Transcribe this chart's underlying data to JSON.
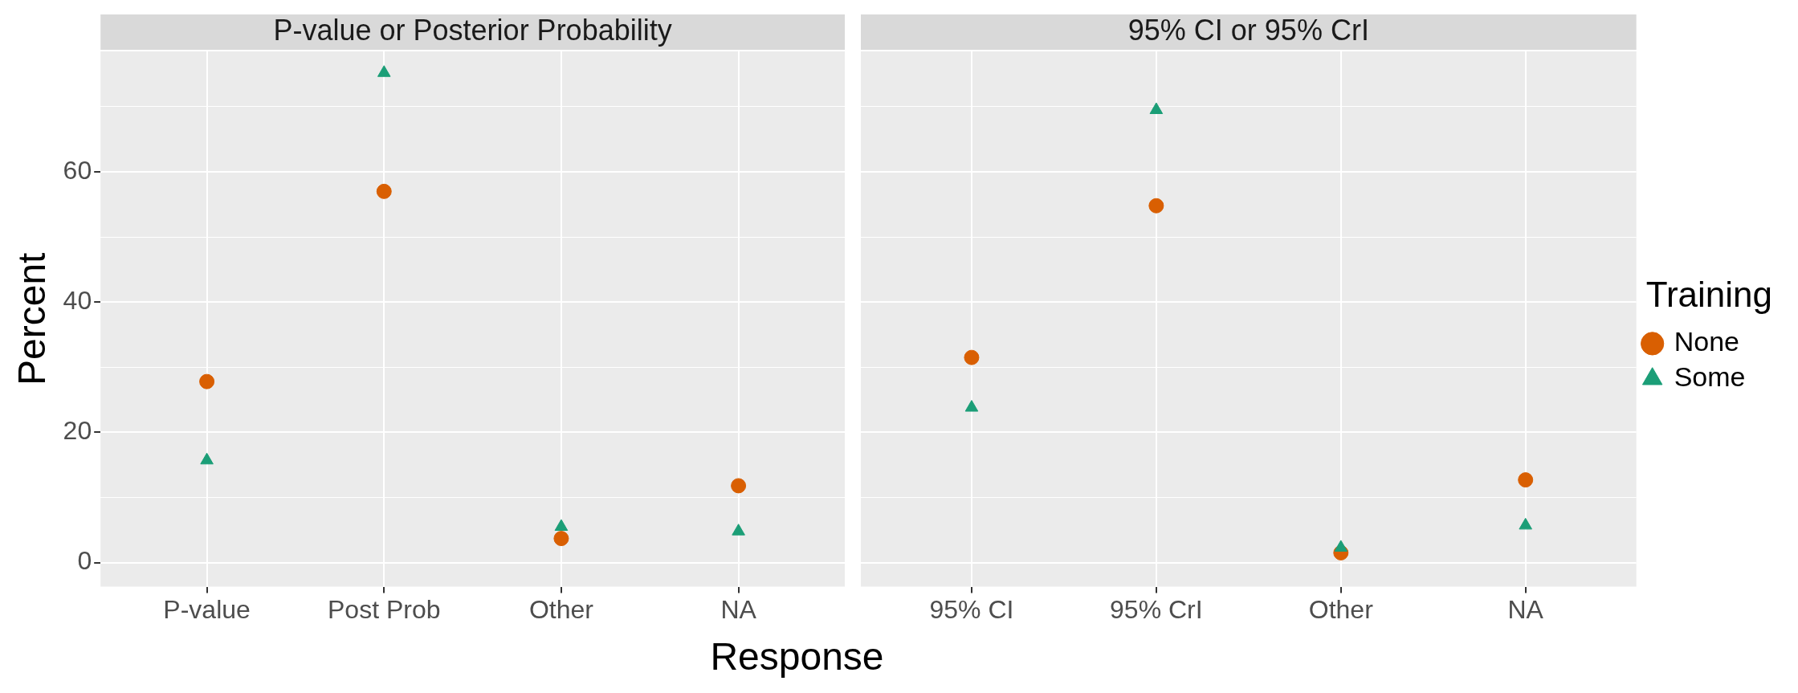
{
  "chart_data": [
    {
      "type": "scatter",
      "title": "P-value or Posterior Probability",
      "xlabel": "Response",
      "ylabel": "Percent",
      "categories": [
        "P-value",
        "Post Prob",
        "Other",
        "NA"
      ],
      "series": [
        {
          "color": "#d95f02",
          "marker": "circle",
          "values": [
            27.8,
            57,
            3.7,
            11.8
          ]
        },
        {
          "color": "#1b9e77",
          "marker": "triangle",
          "values": [
            15.7,
            75.2,
            5.5,
            4.8
          ]
        }
      ],
      "ylim": [
        -3.7,
        78.5
      ],
      "yticks": [
        0,
        {
          "value": 10,
          "label": null
        },
        20,
        {
          "value": 30,
          "label": null
        },
        40,
        {
          "value": 50,
          "label": null
        },
        60,
        {
          "value": 70,
          "label": null
        }
      ],
      "grid": true,
      "legend": false
    },
    {
      "type": "scatter",
      "title": "95% CI or 95% CrI",
      "legend_title": "Training",
      "categories": [
        "95% CI",
        "95% CrI",
        "Other",
        "NA"
      ],
      "series": [
        {
          "name": "None",
          "color": "#d95f02",
          "marker": "circle",
          "values": [
            31.5,
            54.8,
            1.5,
            12.7
          ]
        },
        {
          "name": "Some",
          "color": "#1b9e77",
          "marker": "triangle",
          "values": [
            23.8,
            69.5,
            2.3,
            5.7
          ]
        }
      ],
      "ylim": [
        -3.7,
        78.5
      ],
      "yticks": [
        0,
        {
          "value": 10,
          "label": null
        },
        20,
        {
          "value": 30,
          "label": null
        },
        40,
        {
          "value": 50,
          "label": null
        },
        60,
        {
          "value": 70,
          "label": null
        }
      ],
      "grid": true,
      "legend": "right",
      "tick_labels": "x"
    }
  ]
}
